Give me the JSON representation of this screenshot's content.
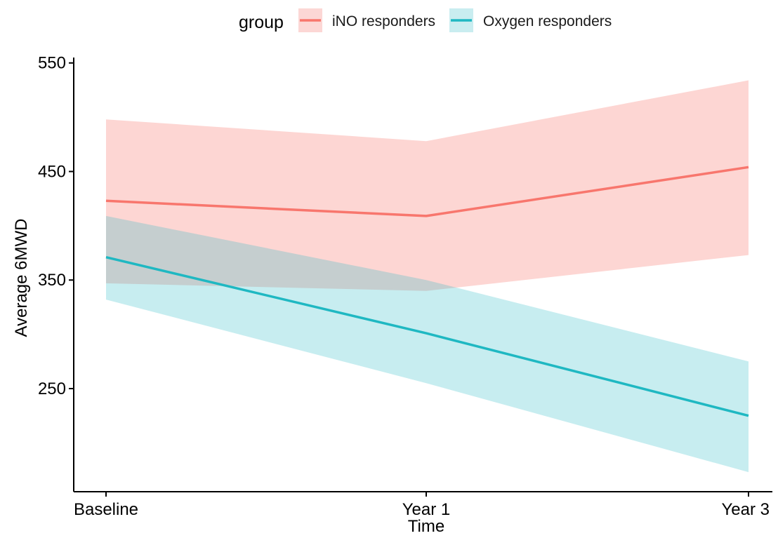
{
  "chart_data": {
    "type": "line",
    "title": "",
    "xlabel": "Time",
    "ylabel": "Average 6MWD",
    "categories": [
      "Baseline",
      "Year 1",
      "Year 3"
    ],
    "ylim": [
      155,
      555
    ],
    "yticks": [
      250,
      350,
      450,
      550
    ],
    "grid": false,
    "legend": {
      "title": "group",
      "placement": "top-center",
      "entries": [
        "iNO responders",
        "Oxygen responders"
      ]
    },
    "series": [
      {
        "name": "iNO responders",
        "color": "#F8766D",
        "band_color": "#FAA9A3",
        "values": [
          423,
          409,
          454
        ],
        "lower": [
          347,
          340,
          373
        ],
        "upper": [
          498,
          478,
          534
        ]
      },
      {
        "name": "Oxygen responders",
        "color": "#1FB8C2",
        "band_color": "#90D8DE",
        "values": [
          371,
          301,
          225
        ],
        "lower": [
          332,
          255,
          173
        ],
        "upper": [
          409,
          350,
          275
        ]
      }
    ]
  }
}
